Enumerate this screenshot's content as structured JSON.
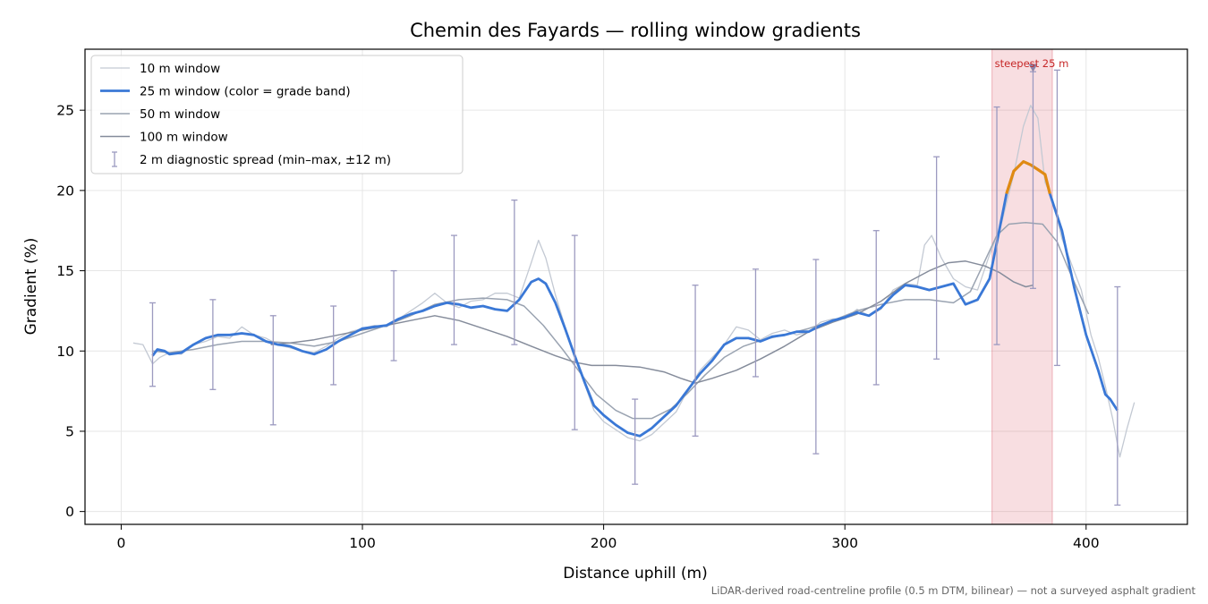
{
  "chart_data": {
    "type": "line",
    "title": "Chemin des Fayards — rolling window gradients",
    "xlabel": "Distance uphill (m)",
    "ylabel": "Gradient (%)",
    "xlim": [
      -15,
      442
    ],
    "ylim": [
      -0.8,
      28.8
    ],
    "xticks": [
      0,
      100,
      200,
      300,
      400
    ],
    "yticks": [
      0,
      5,
      10,
      15,
      20,
      25
    ],
    "grid": true,
    "legend_position": "top-left",
    "note": "LiDAR-derived road-centreline profile (0.5 m DTM, bilinear) — not a surveyed asphalt gradient",
    "highlight": {
      "x0": 361,
      "x1": 386,
      "label": "steepest 25 m",
      "marker_x": 378,
      "marker_y": 27.6
    },
    "series": [
      {
        "name": "10 m window",
        "color": "#c3c9d3",
        "width": 1.3,
        "points": [
          [
            5,
            10.5
          ],
          [
            9,
            10.4
          ],
          [
            13,
            9.2
          ],
          [
            16,
            9.6
          ],
          [
            20,
            9.9
          ],
          [
            25,
            9.8
          ],
          [
            30,
            10.4
          ],
          [
            35,
            10.6
          ],
          [
            40,
            10.9
          ],
          [
            45,
            10.8
          ],
          [
            50,
            11.5
          ],
          [
            55,
            11.0
          ],
          [
            60,
            10.8
          ],
          [
            65,
            10.4
          ],
          [
            70,
            10.2
          ],
          [
            75,
            10.0
          ],
          [
            80,
            9.9
          ],
          [
            85,
            10.3
          ],
          [
            90,
            10.8
          ],
          [
            95,
            11.2
          ],
          [
            100,
            11.4
          ],
          [
            105,
            11.6
          ],
          [
            110,
            11.5
          ],
          [
            115,
            12.0
          ],
          [
            120,
            12.5
          ],
          [
            125,
            13.0
          ],
          [
            130,
            13.6
          ],
          [
            135,
            13.0
          ],
          [
            140,
            12.7
          ],
          [
            145,
            13.1
          ],
          [
            150,
            13.2
          ],
          [
            155,
            13.6
          ],
          [
            160,
            13.6
          ],
          [
            165,
            13.3
          ],
          [
            170,
            15.5
          ],
          [
            173,
            16.9
          ],
          [
            176,
            15.8
          ],
          [
            180,
            13.5
          ],
          [
            184,
            11.5
          ],
          [
            188,
            9.7
          ],
          [
            192,
            8.0
          ],
          [
            196,
            6.3
          ],
          [
            200,
            5.6
          ],
          [
            205,
            5.1
          ],
          [
            210,
            4.6
          ],
          [
            215,
            4.4
          ],
          [
            220,
            4.8
          ],
          [
            225,
            5.5
          ],
          [
            230,
            6.2
          ],
          [
            235,
            7.6
          ],
          [
            240,
            8.8
          ],
          [
            245,
            9.6
          ],
          [
            250,
            10.4
          ],
          [
            255,
            11.5
          ],
          [
            260,
            11.3
          ],
          [
            265,
            10.7
          ],
          [
            270,
            11.1
          ],
          [
            275,
            11.3
          ],
          [
            280,
            11.0
          ],
          [
            285,
            11.2
          ],
          [
            290,
            11.8
          ],
          [
            295,
            12.0
          ],
          [
            300,
            12.0
          ],
          [
            305,
            12.6
          ],
          [
            310,
            12.2
          ],
          [
            315,
            12.6
          ],
          [
            320,
            13.8
          ],
          [
            325,
            14.2
          ],
          [
            330,
            14.1
          ],
          [
            333,
            16.6
          ],
          [
            336,
            17.2
          ],
          [
            340,
            15.8
          ],
          [
            345,
            14.5
          ],
          [
            350,
            14.0
          ],
          [
            355,
            13.8
          ],
          [
            360,
            16.0
          ],
          [
            365,
            18.0
          ],
          [
            370,
            21.0
          ],
          [
            374,
            24.0
          ],
          [
            377,
            25.3
          ],
          [
            380,
            24.5
          ],
          [
            383,
            20.5
          ],
          [
            386,
            19.5
          ],
          [
            390,
            17.0
          ],
          [
            395,
            15.0
          ],
          [
            398,
            13.8
          ],
          [
            402,
            11.0
          ],
          [
            405,
            9.6
          ],
          [
            408,
            7.8
          ],
          [
            411,
            5.8
          ],
          [
            414,
            3.4
          ],
          [
            417,
            5.2
          ],
          [
            420,
            6.8
          ]
        ]
      },
      {
        "name": "25 m window (color = grade band)",
        "color": "#3a78d6",
        "width": 2.8,
        "highlight_color": "#e08a12",
        "highlight_range": [
          367,
          385
        ],
        "points": [
          [
            13,
            9.7
          ],
          [
            15,
            10.1
          ],
          [
            18,
            10.0
          ],
          [
            20,
            9.8
          ],
          [
            25,
            9.9
          ],
          [
            30,
            10.4
          ],
          [
            35,
            10.8
          ],
          [
            40,
            11.0
          ],
          [
            45,
            11.0
          ],
          [
            50,
            11.1
          ],
          [
            55,
            11.0
          ],
          [
            60,
            10.6
          ],
          [
            65,
            10.4
          ],
          [
            70,
            10.3
          ],
          [
            75,
            10.0
          ],
          [
            80,
            9.8
          ],
          [
            85,
            10.1
          ],
          [
            90,
            10.6
          ],
          [
            95,
            11.0
          ],
          [
            100,
            11.4
          ],
          [
            105,
            11.5
          ],
          [
            110,
            11.6
          ],
          [
            115,
            12.0
          ],
          [
            120,
            12.3
          ],
          [
            125,
            12.5
          ],
          [
            130,
            12.8
          ],
          [
            135,
            13.0
          ],
          [
            140,
            12.9
          ],
          [
            145,
            12.7
          ],
          [
            150,
            12.8
          ],
          [
            155,
            12.6
          ],
          [
            160,
            12.5
          ],
          [
            165,
            13.2
          ],
          [
            170,
            14.3
          ],
          [
            173,
            14.5
          ],
          [
            176,
            14.2
          ],
          [
            180,
            13.0
          ],
          [
            184,
            11.4
          ],
          [
            188,
            9.7
          ],
          [
            192,
            8.1
          ],
          [
            196,
            6.6
          ],
          [
            200,
            6.0
          ],
          [
            205,
            5.4
          ],
          [
            210,
            4.9
          ],
          [
            215,
            4.7
          ],
          [
            220,
            5.2
          ],
          [
            225,
            5.9
          ],
          [
            230,
            6.6
          ],
          [
            235,
            7.6
          ],
          [
            240,
            8.6
          ],
          [
            245,
            9.4
          ],
          [
            250,
            10.4
          ],
          [
            255,
            10.8
          ],
          [
            260,
            10.8
          ],
          [
            265,
            10.6
          ],
          [
            270,
            10.9
          ],
          [
            275,
            11.0
          ],
          [
            280,
            11.2
          ],
          [
            285,
            11.2
          ],
          [
            290,
            11.6
          ],
          [
            295,
            11.9
          ],
          [
            300,
            12.1
          ],
          [
            305,
            12.4
          ],
          [
            310,
            12.2
          ],
          [
            315,
            12.7
          ],
          [
            320,
            13.5
          ],
          [
            325,
            14.1
          ],
          [
            330,
            14.0
          ],
          [
            335,
            13.8
          ],
          [
            340,
            14.0
          ],
          [
            345,
            14.2
          ],
          [
            350,
            12.9
          ],
          [
            355,
            13.2
          ],
          [
            360,
            14.5
          ],
          [
            364,
            17.5
          ],
          [
            367,
            19.8
          ],
          [
            370,
            21.2
          ],
          [
            374,
            21.8
          ],
          [
            377,
            21.6
          ],
          [
            380,
            21.3
          ],
          [
            383,
            21.0
          ],
          [
            385,
            19.8
          ],
          [
            390,
            17.5
          ],
          [
            395,
            14.0
          ],
          [
            400,
            11.0
          ],
          [
            405,
            8.8
          ],
          [
            408,
            7.3
          ],
          [
            410,
            7.0
          ],
          [
            413,
            6.3
          ]
        ]
      },
      {
        "name": "50 m window",
        "color": "#9aa3b1",
        "width": 1.5,
        "points": [
          [
            13,
            10.0
          ],
          [
            20,
            9.9
          ],
          [
            30,
            10.1
          ],
          [
            40,
            10.4
          ],
          [
            50,
            10.6
          ],
          [
            60,
            10.6
          ],
          [
            70,
            10.5
          ],
          [
            80,
            10.3
          ],
          [
            90,
            10.6
          ],
          [
            100,
            11.1
          ],
          [
            110,
            11.6
          ],
          [
            120,
            12.2
          ],
          [
            130,
            12.9
          ],
          [
            140,
            13.2
          ],
          [
            150,
            13.3
          ],
          [
            160,
            13.2
          ],
          [
            167,
            12.8
          ],
          [
            175,
            11.6
          ],
          [
            183,
            10.1
          ],
          [
            190,
            8.7
          ],
          [
            197,
            7.3
          ],
          [
            205,
            6.3
          ],
          [
            212,
            5.8
          ],
          [
            220,
            5.8
          ],
          [
            228,
            6.4
          ],
          [
            235,
            7.4
          ],
          [
            242,
            8.5
          ],
          [
            250,
            9.6
          ],
          [
            258,
            10.3
          ],
          [
            266,
            10.7
          ],
          [
            275,
            11.0
          ],
          [
            285,
            11.4
          ],
          [
            295,
            11.9
          ],
          [
            305,
            12.5
          ],
          [
            315,
            12.9
          ],
          [
            325,
            13.2
          ],
          [
            335,
            13.2
          ],
          [
            345,
            13.0
          ],
          [
            352,
            13.7
          ],
          [
            358,
            15.6
          ],
          [
            363,
            17.2
          ],
          [
            368,
            17.9
          ],
          [
            375,
            18.0
          ],
          [
            382,
            17.9
          ],
          [
            388,
            16.8
          ],
          [
            393,
            15.0
          ],
          [
            398,
            13.3
          ],
          [
            401,
            12.3
          ]
        ]
      },
      {
        "name": "100 m window",
        "color": "#858c9b",
        "width": 1.5,
        "points": [
          [
            62,
            10.4
          ],
          [
            70,
            10.5
          ],
          [
            80,
            10.7
          ],
          [
            90,
            11.0
          ],
          [
            100,
            11.3
          ],
          [
            110,
            11.6
          ],
          [
            120,
            11.9
          ],
          [
            130,
            12.2
          ],
          [
            140,
            11.9
          ],
          [
            150,
            11.4
          ],
          [
            160,
            10.9
          ],
          [
            170,
            10.3
          ],
          [
            180,
            9.7
          ],
          [
            188,
            9.3
          ],
          [
            195,
            9.1
          ],
          [
            205,
            9.1
          ],
          [
            215,
            9.0
          ],
          [
            225,
            8.7
          ],
          [
            232,
            8.3
          ],
          [
            238,
            8.0
          ],
          [
            245,
            8.3
          ],
          [
            255,
            8.8
          ],
          [
            265,
            9.5
          ],
          [
            275,
            10.3
          ],
          [
            285,
            11.2
          ],
          [
            295,
            11.8
          ],
          [
            305,
            12.3
          ],
          [
            315,
            13.1
          ],
          [
            325,
            14.2
          ],
          [
            335,
            15.0
          ],
          [
            343,
            15.5
          ],
          [
            350,
            15.6
          ],
          [
            358,
            15.3
          ],
          [
            364,
            14.9
          ],
          [
            370,
            14.3
          ],
          [
            375,
            14.0
          ],
          [
            378,
            14.1
          ]
        ]
      }
    ],
    "error_bars": {
      "name": "2 m diagnostic spread (min–max, ±12 m)",
      "color": "#9c9ac0",
      "bars": [
        [
          13,
          7.8,
          13.0
        ],
        [
          38,
          7.6,
          13.2
        ],
        [
          63,
          5.4,
          12.2
        ],
        [
          88,
          7.9,
          12.8
        ],
        [
          113,
          9.4,
          15.0
        ],
        [
          138,
          10.4,
          17.2
        ],
        [
          163,
          10.4,
          19.4
        ],
        [
          188,
          5.1,
          17.2
        ],
        [
          213,
          1.7,
          7.0
        ],
        [
          238,
          4.7,
          14.1
        ],
        [
          263,
          8.4,
          15.1
        ],
        [
          288,
          3.6,
          15.7
        ],
        [
          313,
          7.9,
          17.5
        ],
        [
          338,
          9.5,
          22.1
        ],
        [
          363,
          10.4,
          25.2
        ],
        [
          378,
          13.9,
          27.4
        ],
        [
          388,
          9.1,
          27.5
        ],
        [
          413,
          0.4,
          14.0
        ]
      ]
    }
  }
}
